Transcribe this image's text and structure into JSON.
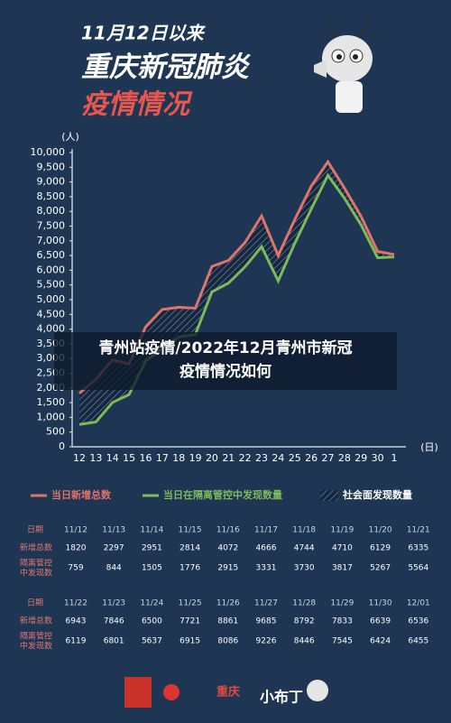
{
  "header": {
    "line1": "11月12日以来",
    "line2": "重庆新冠肺炎",
    "line3": "疫情情况"
  },
  "banner": {
    "line1": "青州站疫情/2022年12月青州市新冠",
    "line2": "疫情情况如何"
  },
  "chart_data": {
    "type": "line",
    "y_unit": "(人)",
    "x_unit": "(日)",
    "categories": [
      "12",
      "13",
      "14",
      "15",
      "16",
      "17",
      "18",
      "19",
      "20",
      "21",
      "22",
      "23",
      "24",
      "25",
      "26",
      "27",
      "28",
      "29",
      "30",
      "1"
    ],
    "series": [
      {
        "name": "当日新增总数",
        "color": "#e0736a",
        "values": [
          1820,
          2297,
          2951,
          2814,
          4072,
          4666,
          4744,
          4710,
          6129,
          6335,
          6943,
          7846,
          6500,
          7721,
          8861,
          9685,
          8792,
          7833,
          6639,
          6536
        ]
      },
      {
        "name": "当日在隔离管控中发现数量",
        "color": "#7dbb5a",
        "values": [
          759,
          844,
          1505,
          1776,
          2915,
          3331,
          3730,
          3817,
          5267,
          5564,
          6119,
          6801,
          5637,
          6915,
          8086,
          9226,
          8446,
          7545,
          6424,
          6455
        ]
      }
    ],
    "area_legend": "社会面发现数量",
    "ylim": [
      0,
      10000
    ],
    "yticks": [
      0,
      500,
      {
        "value": 1000,
        "label": "1,000"
      },
      {
        "value": 1500,
        "label": "1,500"
      },
      {
        "value": 2000,
        "label": "2,000"
      },
      {
        "value": 2500,
        "label": "2,500"
      },
      {
        "value": 3000,
        "label": "3,000"
      },
      {
        "value": 3500,
        "label": "3,500"
      },
      {
        "value": 4000,
        "label": "4,000"
      },
      {
        "value": 4500,
        "label": "4,500"
      },
      {
        "value": 5000,
        "label": "5,000"
      },
      {
        "value": 5500,
        "label": "5,500"
      },
      {
        "value": 6000,
        "label": "6,000"
      },
      {
        "value": 6500,
        "label": "6,500"
      },
      {
        "value": 7000,
        "label": "7,000"
      },
      {
        "value": 7500,
        "label": "7,500"
      },
      {
        "value": 8000,
        "label": "8,000"
      },
      {
        "value": 8500,
        "label": "8,500"
      },
      {
        "value": 9000,
        "label": "9,000"
      },
      {
        "value": 9500,
        "label": "9,500"
      },
      {
        "value": 10000,
        "label": "10,000"
      }
    ],
    "grid": false
  },
  "table": {
    "date_label": "日期",
    "new_label": "新增总数",
    "quarantine_label": [
      "隔离管控",
      "中发现数"
    ],
    "dates": [
      "11/12",
      "11/13",
      "11/14",
      "11/15",
      "11/16",
      "11/17",
      "11/18",
      "11/19",
      "11/20",
      "11/21",
      "11/22",
      "11/23",
      "11/24",
      "11/25",
      "11/26",
      "11/27",
      "11/28",
      "11/29",
      "11/30",
      "12/01"
    ]
  },
  "footer": {
    "logo1": "重庆",
    "logo2": "小布丁"
  }
}
